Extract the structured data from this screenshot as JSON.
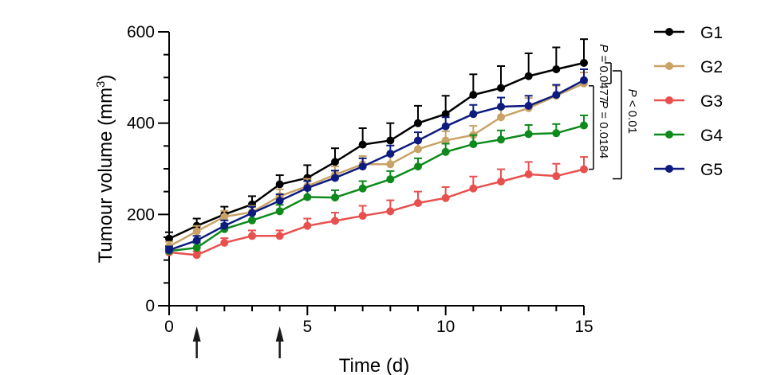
{
  "chart_data": {
    "type": "line",
    "xlabel": "Time (d)",
    "ylabel": "Tumour volume (mm",
    "ylabel_sup": "3",
    "ylabel_close": ")",
    "xlim": [
      0,
      15
    ],
    "ylim": [
      0,
      600
    ],
    "x_ticks": [
      0,
      5,
      10,
      15
    ],
    "y_ticks": [
      0,
      200,
      400,
      600
    ],
    "treatment_days": [
      1,
      4
    ],
    "x": [
      0,
      1,
      2,
      3,
      4,
      5,
      6,
      7,
      8,
      9,
      10,
      11,
      12,
      13,
      14,
      15
    ],
    "series": [
      {
        "name": "G1",
        "color": "#000000",
        "values": [
          147,
          175,
          200,
          222,
          266,
          280,
          315,
          353,
          362,
          400,
          420,
          462,
          477,
          503,
          518,
          532
        ],
        "errors": [
          14,
          16,
          17,
          18,
          20,
          28,
          30,
          36,
          38,
          38,
          40,
          45,
          48,
          50,
          48,
          52
        ]
      },
      {
        "name": "G2",
        "color": "#C9A266",
        "values": [
          130,
          163,
          195,
          205,
          240,
          262,
          287,
          310,
          310,
          343,
          362,
          374,
          413,
          433,
          460,
          487
        ],
        "errors": [
          10,
          12,
          13,
          14,
          15,
          16,
          18,
          18,
          20,
          20,
          20,
          20,
          20,
          22,
          22,
          24
        ]
      },
      {
        "name": "G3",
        "color": "#E8504E",
        "values": [
          117,
          111,
          138,
          153,
          153,
          175,
          186,
          197,
          207,
          225,
          236,
          257,
          272,
          288,
          284,
          299
        ],
        "errors": [
          8,
          8,
          10,
          12,
          12,
          16,
          18,
          22,
          24,
          25,
          24,
          26,
          27,
          27,
          27,
          27
        ]
      },
      {
        "name": "G4",
        "color": "#0E8A1C",
        "values": [
          120,
          127,
          168,
          187,
          207,
          238,
          237,
          257,
          277,
          305,
          337,
          354,
          364,
          376,
          378,
          395
        ],
        "errors": [
          8,
          10,
          12,
          14,
          14,
          16,
          16,
          16,
          18,
          18,
          18,
          20,
          20,
          20,
          20,
          22
        ]
      },
      {
        "name": "G5",
        "color": "#0D1B7E",
        "values": [
          122,
          143,
          175,
          203,
          230,
          258,
          280,
          305,
          333,
          362,
          393,
          420,
          436,
          438,
          462,
          494
        ],
        "errors": [
          8,
          10,
          12,
          14,
          14,
          15,
          16,
          18,
          18,
          18,
          20,
          20,
          20,
          22,
          22,
          24
        ]
      }
    ],
    "significance": [
      {
        "label_p": "P",
        "label_rest": " = 0.0477",
        "between": [
          "G1",
          "G2"
        ]
      },
      {
        "label_p": "P",
        "label_rest": " = 0.0184",
        "between": [
          "G2",
          "G3"
        ]
      },
      {
        "label_p": "P",
        "label_rest": " < 0.01",
        "between": [
          "G1",
          "G3"
        ]
      }
    ],
    "legend_position": "right"
  }
}
